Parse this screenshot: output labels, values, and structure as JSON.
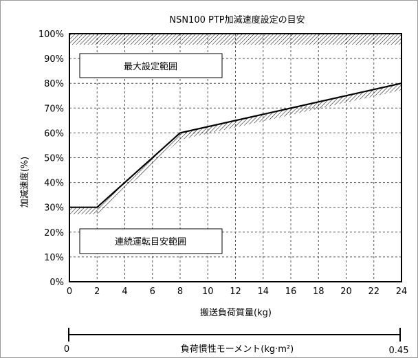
{
  "chart_data": {
    "type": "line",
    "title": "NSN100 PTP加減速度設定の目安",
    "xlabel": "搬送負荷質量(kg)",
    "ylabel": "加減速度(%)",
    "xlim": [
      0,
      24
    ],
    "ylim": [
      0,
      100
    ],
    "x_ticks": [
      "0",
      "2",
      "4",
      "6",
      "8",
      "10",
      "12",
      "14",
      "16",
      "18",
      "20",
      "22",
      "24"
    ],
    "y_ticks": [
      "0%",
      "10%",
      "20%",
      "30%",
      "40%",
      "50%",
      "60%",
      "70%",
      "80%",
      "90%",
      "100%"
    ],
    "grid": true,
    "series": [
      {
        "x": [
          0,
          2,
          8,
          24
        ],
        "values": [
          30,
          30,
          60,
          80
        ]
      }
    ],
    "regions": {
      "upper_label": "最大設定範囲",
      "lower_label": "連続運転目安範囲"
    },
    "secondary_axis": {
      "label": "負荷慣性モーメント(kg·m²)",
      "min_label": "0",
      "max_label": "0.45"
    }
  }
}
